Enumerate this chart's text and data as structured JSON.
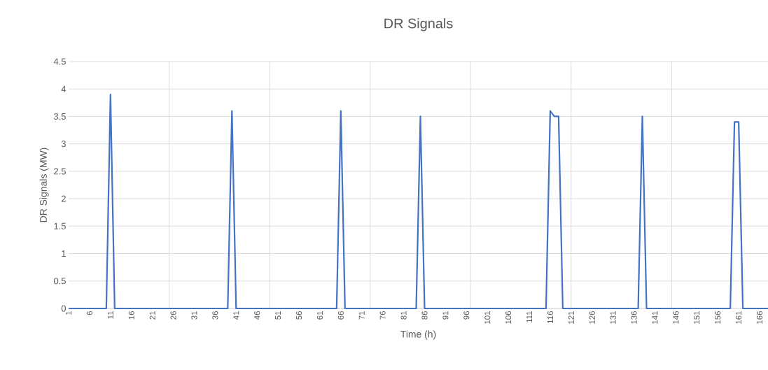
{
  "chart_data": {
    "type": "line",
    "title": "DR Signals",
    "xlabel": "Time (h)",
    "ylabel": "DR Signals (MW)",
    "categories": [
      "1",
      null,
      null,
      null,
      null,
      "6",
      null,
      null,
      null,
      null,
      "11",
      null,
      null,
      null,
      null,
      "16",
      null,
      null,
      null,
      null,
      "21",
      null,
      null,
      null,
      null,
      "26",
      null,
      null,
      null,
      null,
      "31",
      null,
      null,
      null,
      null,
      "36",
      null,
      null,
      null,
      null,
      "41",
      null,
      null,
      null,
      null,
      "46",
      null,
      null,
      null,
      null,
      "51",
      null,
      null,
      null,
      null,
      "56",
      null,
      null,
      null,
      null,
      "61",
      null,
      null,
      null,
      null,
      "66",
      null,
      null,
      null,
      null,
      "71",
      null,
      null,
      null,
      null,
      "76",
      null,
      null,
      null,
      null,
      "81",
      null,
      null,
      null,
      null,
      "86",
      null,
      null,
      null,
      null,
      "91",
      null,
      null,
      null,
      null,
      "96",
      null,
      null,
      null,
      null,
      "101",
      null,
      null,
      null,
      null,
      "106",
      null,
      null,
      null,
      null,
      "111",
      null,
      null,
      null,
      null,
      "116",
      null,
      null,
      null,
      null,
      "121",
      null,
      null,
      null,
      null,
      "126",
      null,
      null,
      null,
      null,
      "131",
      null,
      null,
      null,
      null,
      "136",
      null,
      null,
      null,
      null,
      "141",
      null,
      null,
      null,
      null,
      "146",
      null,
      null,
      null,
      null,
      "151",
      null,
      null,
      null,
      null,
      "156",
      null,
      null,
      null,
      null,
      "161",
      null,
      null,
      null,
      null,
      "166",
      null,
      null
    ],
    "series": [
      {
        "color": "#4472c4",
        "values": [
          0,
          0,
          0,
          0,
          0,
          0,
          0,
          0,
          0,
          0,
          3.9,
          0,
          0,
          0,
          0,
          0,
          0,
          0,
          0,
          0,
          0,
          0,
          0,
          0,
          0,
          0,
          0,
          0,
          0,
          0,
          0,
          0,
          0,
          0,
          0,
          0,
          0,
          0,
          0,
          3.6,
          0,
          0,
          0,
          0,
          0,
          0,
          0,
          0,
          0,
          0,
          0,
          0,
          0,
          0,
          0,
          0,
          0,
          0,
          0,
          0,
          0,
          0,
          0,
          0,
          0,
          3.6,
          0,
          0,
          0,
          0,
          0,
          0,
          0,
          0,
          0,
          0,
          0,
          0,
          0,
          0,
          0,
          0,
          0,
          0,
          3.5,
          0,
          0,
          0,
          0,
          0,
          0,
          0,
          0,
          0,
          0,
          0,
          0,
          0,
          0,
          0,
          0,
          0,
          0,
          0,
          0,
          0,
          0,
          0,
          0,
          0,
          0,
          0,
          0,
          0,
          0,
          3.6,
          3.5,
          3.5,
          0,
          0,
          0,
          0,
          0,
          0,
          0,
          0,
          0,
          0,
          0,
          0,
          0,
          0,
          0,
          0,
          0,
          0,
          0,
          3.5,
          0,
          0,
          0,
          0,
          0,
          0,
          0,
          0,
          0,
          0,
          0,
          0,
          0,
          0,
          0,
          0,
          0,
          0,
          0,
          0,
          0,
          3.4,
          3.4,
          0,
          0,
          0,
          0,
          0,
          0,
          0
        ]
      }
    ],
    "ylim": [
      0,
      4.5
    ],
    "yticks": [
      0,
      0.5,
      1,
      1.5,
      2,
      2.5,
      3,
      3.5,
      4,
      4.5
    ],
    "grid": true,
    "marker": "none",
    "line_style": "solid"
  }
}
